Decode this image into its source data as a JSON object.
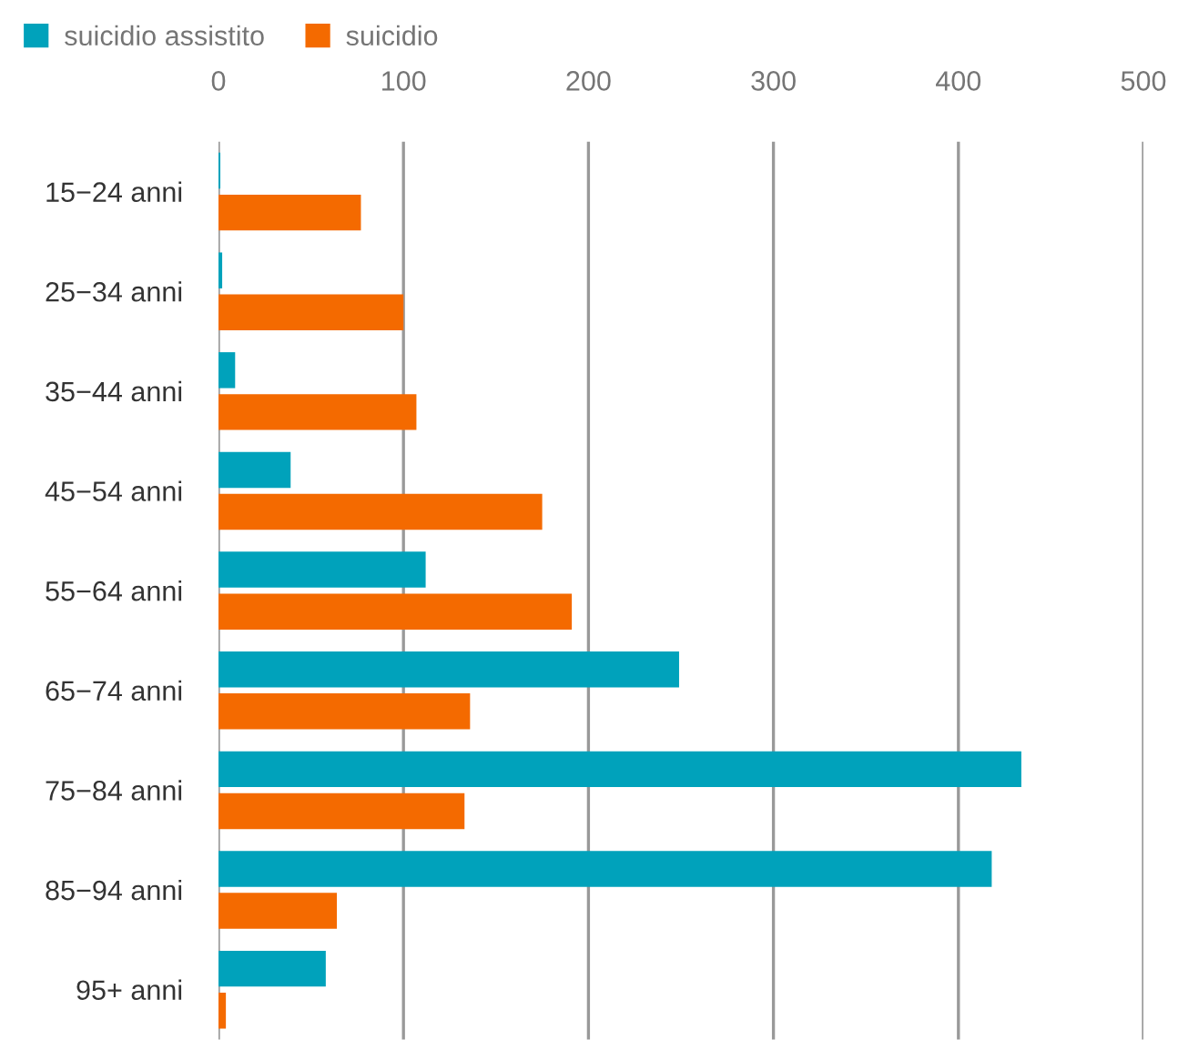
{
  "chart_data": {
    "type": "bar",
    "orientation": "horizontal",
    "categories": [
      "15−24 anni",
      "25−34 anni",
      "35−44 anni",
      "45−54 anni",
      "55−64 anni",
      "65−74 anni",
      "75−84 anni",
      "85−94 anni",
      "95+ anni"
    ],
    "series": [
      {
        "name": "suicidio assistito",
        "color": "#00a2bb",
        "values": [
          1,
          2,
          9,
          39,
          112,
          249,
          434,
          418,
          58
        ]
      },
      {
        "name": "suicidio",
        "color": "#f46a00",
        "values": [
          77,
          100,
          107,
          175,
          191,
          136,
          133,
          64,
          4
        ]
      }
    ],
    "xlim": [
      0,
      500
    ],
    "xticks": [
      0,
      100,
      200,
      300,
      400,
      500
    ],
    "grid": "x",
    "legend": "top left"
  }
}
